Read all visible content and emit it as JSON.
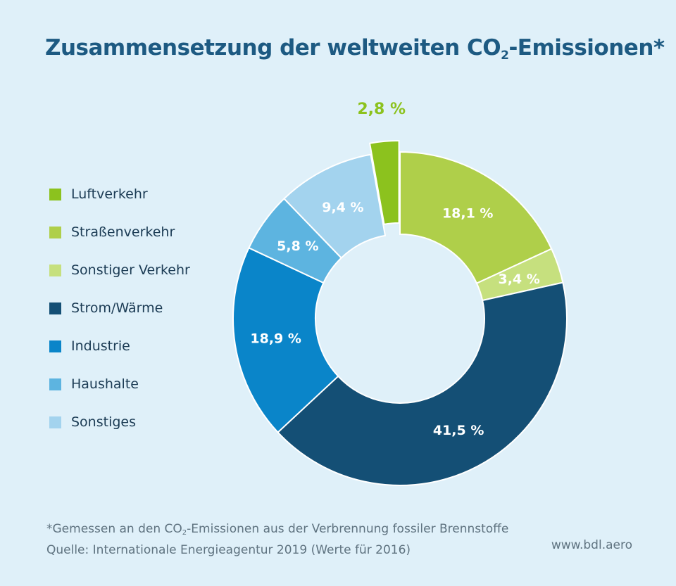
{
  "title": {
    "prefix": "Zusammensetzung der weltweiten CO",
    "sub": "2",
    "suffix": "-Emissionen*"
  },
  "chart_data": {
    "type": "pie",
    "categories": [
      "Luftverkehr",
      "Straßenverkehr",
      "Sonstiger Verkehr",
      "Strom/Wärme",
      "Industrie",
      "Haushalte",
      "Sonstiges"
    ],
    "values": [
      2.8,
      18.1,
      3.4,
      41.5,
      18.9,
      5.8,
      9.4
    ],
    "labels": [
      "2,8 %",
      "18,1 %",
      "3,4 %",
      "41,5 %",
      "18,9 %",
      "5,8 %",
      "9,4 %"
    ],
    "colors": [
      "#8cc21e",
      "#afcf4a",
      "#c6e07e",
      "#144f75",
      "#0a85c9",
      "#5db4e0",
      "#a3d3ee"
    ],
    "exploded_index": 0,
    "legend_position": "left"
  },
  "footer": {
    "note_prefix": "*Gemessen an den CO",
    "note_sub": "2",
    "note_suffix": "-Emissionen aus der Verbrennung fossiler Brennstoffe",
    "source": "Quelle: Internationale Energieagentur 2019 (Werte für 2016)"
  },
  "website": "www.bdl.aero"
}
